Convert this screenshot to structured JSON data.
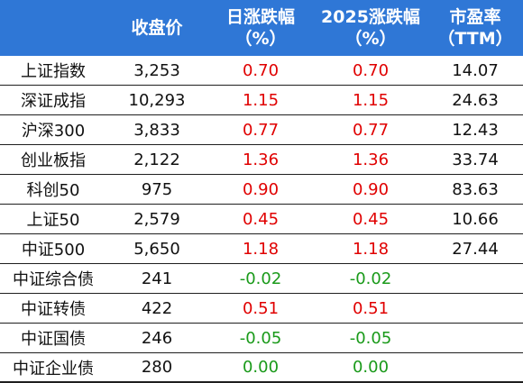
{
  "headers": [
    "",
    "收盘价",
    "日涨跌幅\n（%）",
    "2025涨跌幅\n（%）",
    "市盈率\n（TTM）"
  ],
  "colors": {
    "header_bg": "#2f77d6",
    "positive": "#e00000",
    "negative": "#1a9a1a"
  },
  "rows": [
    {
      "name": "上证指数",
      "close": "3,253",
      "daily": "0.70",
      "ytd": "0.70",
      "pe": "14.07",
      "sign": "pos"
    },
    {
      "name": "深证成指",
      "close": "10,293",
      "daily": "1.15",
      "ytd": "1.15",
      "pe": "24.63",
      "sign": "pos"
    },
    {
      "name": "沪深300",
      "close": "3,833",
      "daily": "0.77",
      "ytd": "0.77",
      "pe": "12.43",
      "sign": "pos"
    },
    {
      "name": "创业板指",
      "close": "2,122",
      "daily": "1.36",
      "ytd": "1.36",
      "pe": "33.74",
      "sign": "pos"
    },
    {
      "name": "科创50",
      "close": "975",
      "daily": "0.90",
      "ytd": "0.90",
      "pe": "83.63",
      "sign": "pos"
    },
    {
      "name": "上证50",
      "close": "2,579",
      "daily": "0.45",
      "ytd": "0.45",
      "pe": "10.66",
      "sign": "pos"
    },
    {
      "name": "中证500",
      "close": "5,650",
      "daily": "1.18",
      "ytd": "1.18",
      "pe": "27.44",
      "sign": "pos"
    },
    {
      "name": "中证综合债",
      "close": "241",
      "daily": "-0.02",
      "ytd": "-0.02",
      "pe": "",
      "sign": "neg"
    },
    {
      "name": "中证转债",
      "close": "422",
      "daily": "0.51",
      "ytd": "0.51",
      "pe": "",
      "sign": "pos"
    },
    {
      "name": "中证国债",
      "close": "246",
      "daily": "-0.05",
      "ytd": "-0.05",
      "pe": "",
      "sign": "neg"
    },
    {
      "name": "中证企业债",
      "close": "280",
      "daily": "0.00",
      "ytd": "0.00",
      "pe": "",
      "sign": "neg"
    }
  ]
}
